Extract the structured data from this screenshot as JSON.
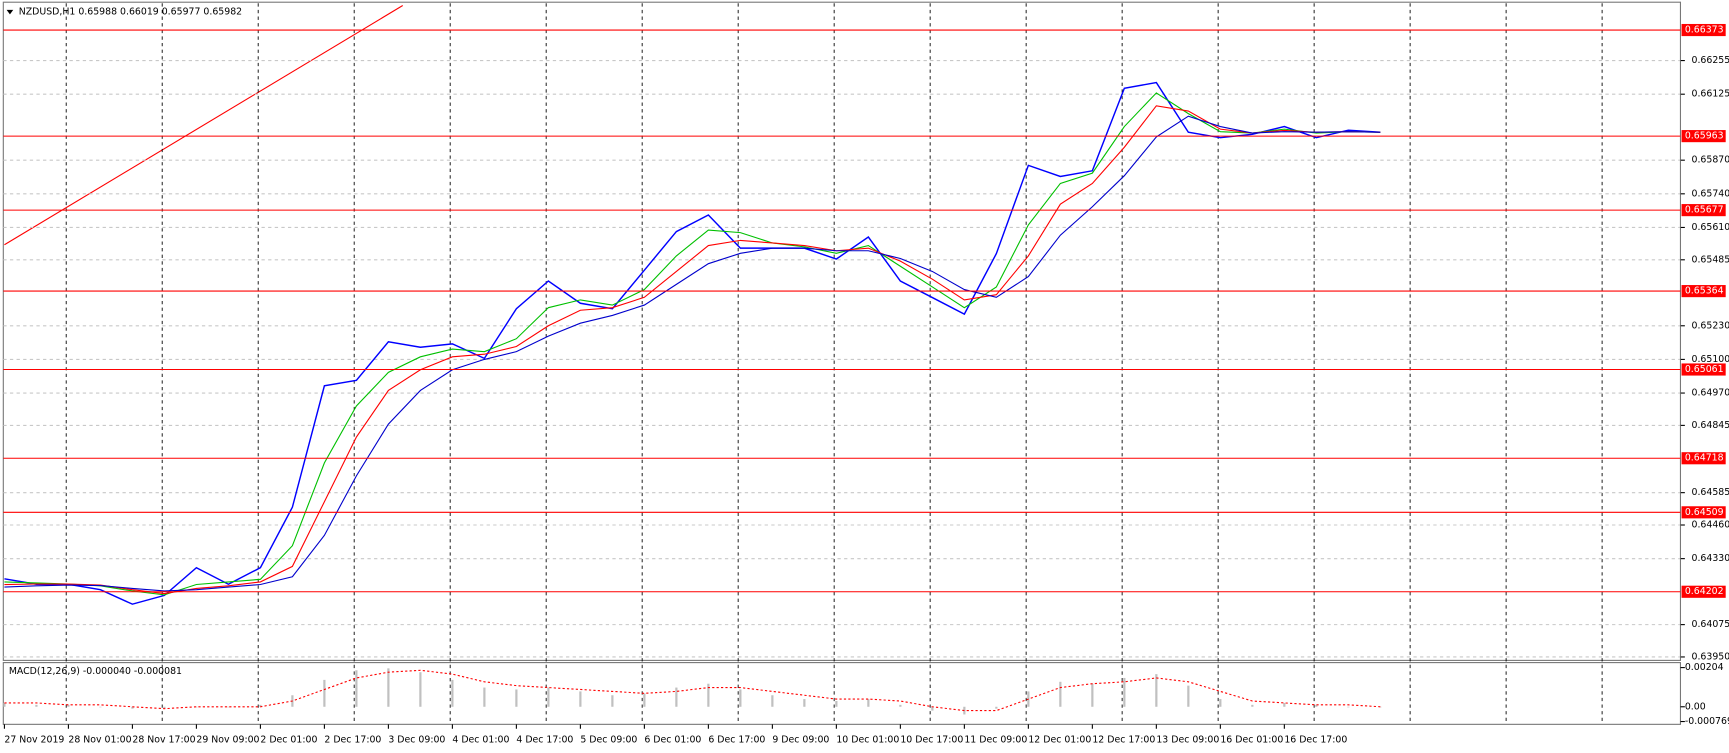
{
  "chart_data": [
    {
      "type": "line",
      "title": "NZDUSD,H1  0.65988 0.66019 0.65977 0.65982",
      "categories": [
        "27 Nov 2019",
        null,
        "28 Nov 01:00",
        null,
        "28 Nov 17:00",
        null,
        "29 Nov 09:00",
        null,
        "2 Dec 01:00",
        null,
        "2 Dec 17:00",
        null,
        "3 Dec 09:00",
        null,
        "4 Dec 01:00",
        null,
        "4 Dec 17:00",
        null,
        "5 Dec 09:00",
        null,
        "6 Dec 01:00",
        null,
        "6 Dec 17:00",
        null,
        "9 Dec 09:00",
        null,
        "10 Dec 01:00",
        null,
        "10 Dec 17:00",
        null,
        "11 Dec 09:00",
        null,
        "12 Dec 01:00",
        null,
        "12 Dec 17:00",
        null,
        "13 Dec 09:00",
        null,
        "16 Dec 01:00",
        null,
        "16 Dec 17:00",
        null,
        null,
        null
      ],
      "series": [
        {
          "color": "#0000ff",
          "values": [
            0.64252,
            0.64231,
            0.64231,
            0.6421,
            0.64154,
            0.64188,
            0.64295,
            0.64231,
            0.64295,
            0.64529,
            0.64998,
            0.65019,
            0.65168,
            0.65147,
            0.6516,
            0.65104,
            0.65296,
            0.65403,
            0.65317,
            0.65296,
            0.65445,
            0.65594,
            0.65658,
            0.6553,
            0.6553,
            0.6553,
            0.65488,
            0.65573,
            0.65403,
            0.65339,
            0.65275,
            0.65509,
            0.6585,
            0.65807,
            0.65829,
            0.66148,
            0.6617,
            0.65978,
            0.65957,
            0.6597,
            0.66,
            0.65957,
            0.65986,
            0.65978
          ]
        },
        {
          "color": "#00c000",
          "values": [
            0.6424,
            0.64236,
            0.64232,
            0.64225,
            0.64205,
            0.6419,
            0.6423,
            0.6424,
            0.6425,
            0.6438,
            0.647,
            0.6492,
            0.6505,
            0.6511,
            0.6514,
            0.6513,
            0.6518,
            0.653,
            0.6533,
            0.6531,
            0.6537,
            0.655,
            0.656,
            0.6559,
            0.6555,
            0.65535,
            0.6551,
            0.6554,
            0.6546,
            0.6538,
            0.653,
            0.6538,
            0.6562,
            0.6578,
            0.6582,
            0.66,
            0.6613,
            0.6605,
            0.6598,
            0.65975,
            0.6599,
            0.65975,
            0.6598,
            0.65978
          ]
        },
        {
          "color": "#ff0000",
          "values": [
            0.6423,
            0.64232,
            0.64232,
            0.64228,
            0.6421,
            0.64195,
            0.64215,
            0.64225,
            0.6424,
            0.643,
            0.6455,
            0.648,
            0.6498,
            0.6506,
            0.6511,
            0.6512,
            0.6515,
            0.6523,
            0.6529,
            0.653,
            0.6534,
            0.6544,
            0.6554,
            0.6556,
            0.6555,
            0.6554,
            0.6552,
            0.6553,
            0.6548,
            0.6541,
            0.6533,
            0.6535,
            0.655,
            0.657,
            0.6578,
            0.6592,
            0.6608,
            0.6606,
            0.6599,
            0.65975,
            0.65985,
            0.65978,
            0.6598,
            0.65978
          ]
        },
        {
          "color": "#0000cc",
          "values": [
            0.6422,
            0.64225,
            0.64228,
            0.64226,
            0.64215,
            0.64205,
            0.6421,
            0.6422,
            0.6423,
            0.6426,
            0.6442,
            0.6465,
            0.6485,
            0.6498,
            0.6506,
            0.651,
            0.6513,
            0.6519,
            0.6524,
            0.6527,
            0.6531,
            0.6539,
            0.6547,
            0.6551,
            0.6553,
            0.6553,
            0.6552,
            0.6552,
            0.6549,
            0.6544,
            0.6537,
            0.6534,
            0.6542,
            0.6558,
            0.6569,
            0.6581,
            0.6596,
            0.6604,
            0.66,
            0.65975,
            0.6598,
            0.65978,
            0.6598,
            0.65978
          ]
        }
      ],
      "levels": [
        0.66373,
        0.65963,
        0.65677,
        0.65364,
        0.65061,
        0.64718,
        0.64509,
        0.64202
      ],
      "level_color": "#ff0000",
      "ylim": [
        0.63941,
        0.66455
      ],
      "yticks": [
        0.66255,
        0.66125,
        {
          "value": 0.6587,
          "label": "0.65870"
        },
        {
          "value": 0.6574,
          "label": "0.65740"
        },
        {
          "value": 0.6561,
          "label": "0.65610"
        },
        0.65485,
        {
          "value": 0.6523,
          "label": "0.65230"
        },
        {
          "value": 0.651,
          "label": "0.65100"
        },
        {
          "value": 0.6497,
          "label": "0.64970"
        },
        0.64845,
        0.64585,
        {
          "value": 0.6446,
          "label": "0.64460"
        },
        {
          "value": 0.6433,
          "label": "0.64330"
        },
        0.64075,
        {
          "value": 0.6395,
          "label": "0.63950"
        }
      ],
      "grid": true
    },
    {
      "type": "macd",
      "title": "MACD(12,26,9) -0.000040 -0.000081",
      "series": [
        {
          "color": "#c0c0c0",
          "values": [
            0.0002,
            0.0001,
            0.0001,
            0.0,
            -0.0001,
            -0.0001,
            0.0,
            0.0,
            0.0001,
            0.0006,
            0.0014,
            0.0019,
            0.002,
            0.0018,
            0.0014,
            0.001,
            0.0009,
            0.001,
            0.0008,
            0.0006,
            0.0007,
            0.001,
            0.0012,
            0.0009,
            0.0006,
            0.0004,
            0.0003,
            0.0004,
            0.0001,
            -0.0002,
            -0.0004,
            -0.0001,
            0.0008,
            0.0013,
            0.0012,
            0.0015,
            0.0017,
            0.0011,
            0.0004,
            0.0001,
            0.0002,
            0.0001,
            0.0,
            0.0
          ]
        },
        {
          "color": "#ff0000",
          "values": [
            0.0002,
            0.0002,
            0.0001,
            0.0001,
            0.0,
            -0.0001,
            0.0,
            0.0,
            0.0,
            0.0003,
            0.0009,
            0.0015,
            0.0018,
            0.0019,
            0.0017,
            0.0013,
            0.0011,
            0.001,
            0.0009,
            0.0008,
            0.0007,
            0.0008,
            0.001,
            0.001,
            0.0008,
            0.0006,
            0.0004,
            0.0004,
            0.0003,
            0.0,
            -0.0002,
            -0.0002,
            0.0004,
            0.001,
            0.0012,
            0.0013,
            0.0015,
            0.0013,
            0.0008,
            0.0003,
            0.0002,
            0.0001,
            0.0001,
            0.0
          ]
        }
      ],
      "ylim": [
        -0.0008,
        0.0023
      ],
      "yticks": [
        0.00204,
        {
          "value": 0,
          "label": "0.00"
        },
        -0.000769
      ]
    }
  ]
}
